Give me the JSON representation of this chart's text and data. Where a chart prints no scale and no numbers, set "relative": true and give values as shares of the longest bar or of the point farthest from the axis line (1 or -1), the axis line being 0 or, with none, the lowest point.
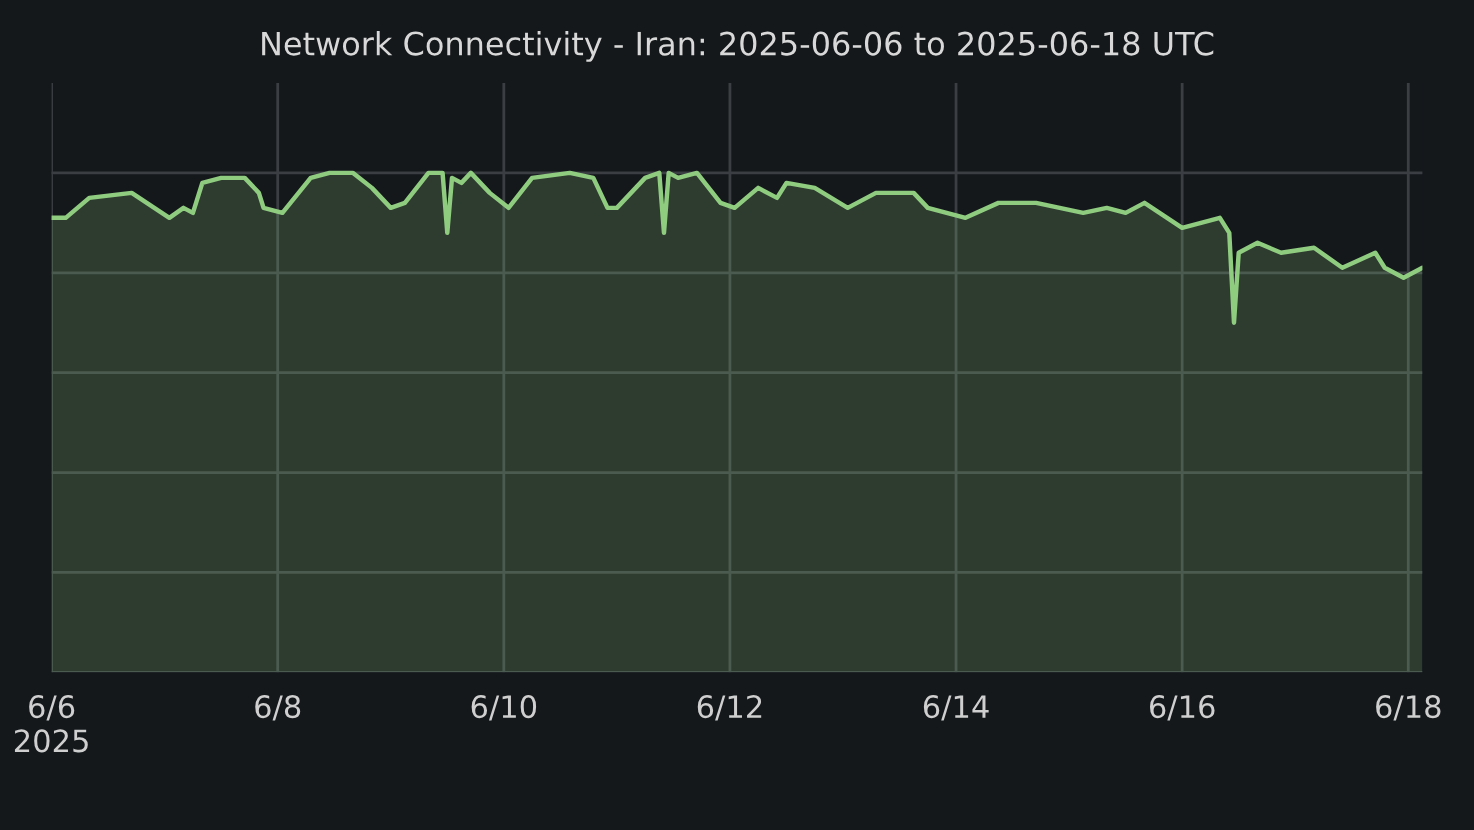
{
  "chart_data": {
    "type": "area",
    "title": "Network Connectivity - Iran: 2025-06-06 to 2025-06-18 UTC",
    "relative": true,
    "grid": true,
    "x": [
      "2025-06-06T00:00",
      "2025-06-06T03:00",
      "2025-06-06T08:00",
      "2025-06-06T17:00",
      "2025-06-07T01:00",
      "2025-06-07T04:00",
      "2025-06-07T06:00",
      "2025-06-07T08:00",
      "2025-06-07T12:00",
      "2025-06-07T17:00",
      "2025-06-07T20:00",
      "2025-06-07T21:00",
      "2025-06-08T01:00",
      "2025-06-08T07:00",
      "2025-06-08T11:00",
      "2025-06-08T16:00",
      "2025-06-08T20:00",
      "2025-06-09T00:00",
      "2025-06-09T03:00",
      "2025-06-09T08:00",
      "2025-06-09T11:00",
      "2025-06-09T12:00",
      "2025-06-09T13:00",
      "2025-06-09T15:00",
      "2025-06-09T17:00",
      "2025-06-09T21:00",
      "2025-06-10T01:00",
      "2025-06-10T06:00",
      "2025-06-10T14:00",
      "2025-06-10T19:00",
      "2025-06-10T22:00",
      "2025-06-11T00:00",
      "2025-06-11T06:00",
      "2025-06-11T09:00",
      "2025-06-11T10:00",
      "2025-06-11T11:00",
      "2025-06-11T13:00",
      "2025-06-11T17:00",
      "2025-06-11T22:00",
      "2025-06-12T01:00",
      "2025-06-12T06:00",
      "2025-06-12T10:00",
      "2025-06-12T12:00",
      "2025-06-12T18:00",
      "2025-06-13T01:00",
      "2025-06-13T07:00",
      "2025-06-13T15:00",
      "2025-06-13T18:00",
      "2025-06-13T22:00",
      "2025-06-14T02:00",
      "2025-06-14T09:00",
      "2025-06-14T17:00",
      "2025-06-15T03:00",
      "2025-06-15T08:00",
      "2025-06-15T12:00",
      "2025-06-15T16:00",
      "2025-06-16T00:00",
      "2025-06-16T08:00",
      "2025-06-16T10:00",
      "2025-06-16T11:00",
      "2025-06-16T12:00",
      "2025-06-16T16:00",
      "2025-06-16T21:00",
      "2025-06-17T04:00",
      "2025-06-17T10:00",
      "2025-06-17T17:00",
      "2025-06-17T19:00",
      "2025-06-17T23:00",
      "2025-06-18T03:00"
    ],
    "series": [
      {
        "color": "#8fcc80",
        "values": [
          0.91,
          0.91,
          0.95,
          0.96,
          0.91,
          0.93,
          0.92,
          0.98,
          0.99,
          0.99,
          0.96,
          0.93,
          0.92,
          0.99,
          1.0,
          1.0,
          0.97,
          0.93,
          0.94,
          1.0,
          1.0,
          0.88,
          0.99,
          0.98,
          1.0,
          0.96,
          0.93,
          0.99,
          1.0,
          0.99,
          0.93,
          0.93,
          0.99,
          1.0,
          0.88,
          1.0,
          0.99,
          1.0,
          0.94,
          0.93,
          0.97,
          0.95,
          0.98,
          0.97,
          0.93,
          0.96,
          0.96,
          0.93,
          0.92,
          0.91,
          0.94,
          0.94,
          0.92,
          0.93,
          0.92,
          0.94,
          0.89,
          0.91,
          0.88,
          0.7,
          0.84,
          0.86,
          0.84,
          0.85,
          0.81,
          0.84,
          0.81,
          0.79,
          0.81
        ]
      }
    ],
    "xlim": [
      "2025-06-06T00:00",
      "2025-06-18T03:00"
    ],
    "xticks": [
      {
        "value": "2025-06-06",
        "label": "6/6\n2025"
      },
      {
        "value": "2025-06-08",
        "label": "6/8"
      },
      {
        "value": "2025-06-10",
        "label": "6/10"
      },
      {
        "value": "2025-06-12",
        "label": "6/12"
      },
      {
        "value": "2025-06-14",
        "label": "6/14"
      },
      {
        "value": "2025-06-16",
        "label": "6/16"
      },
      {
        "value": "2025-06-18",
        "label": "6/18"
      }
    ]
  }
}
